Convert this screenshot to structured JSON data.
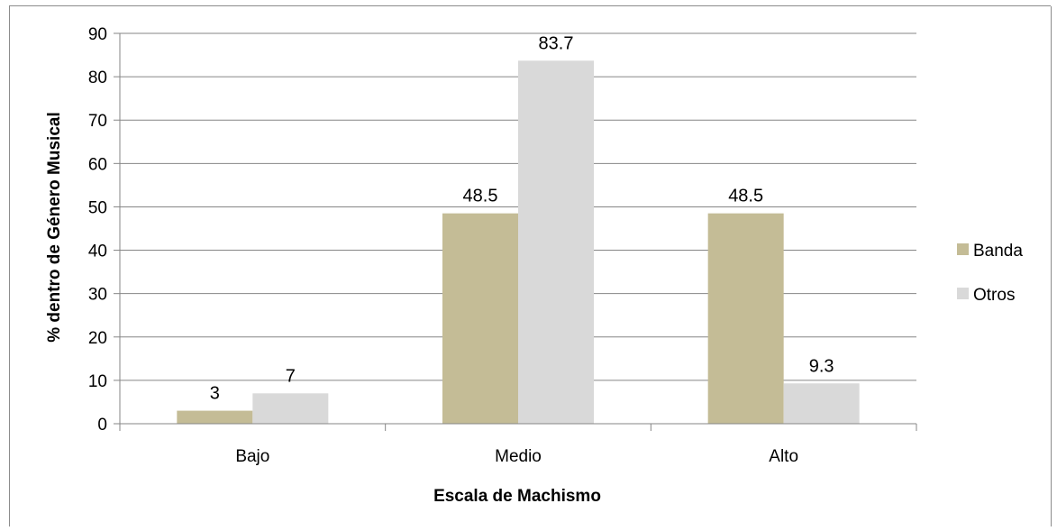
{
  "chart_data": {
    "type": "bar",
    "title": "",
    "xlabel": "Escala de Machismo",
    "ylabel": "% dentro de Género Musical",
    "categories": [
      "Bajo",
      "Medio",
      "Alto"
    ],
    "series": [
      {
        "name": "Banda",
        "values": [
          3,
          48.5,
          48.5
        ],
        "labels": [
          "3",
          "48.5",
          "48.5"
        ],
        "color": "#c4bc96"
      },
      {
        "name": "Otros",
        "values": [
          7,
          83.7,
          9.3
        ],
        "labels": [
          "7",
          "83.7",
          "9.3"
        ],
        "color": "#d9d9d9"
      }
    ],
    "ylim": [
      0,
      90
    ],
    "yticks": [
      "0",
      "10",
      "20",
      "30",
      "40",
      "50",
      "60",
      "70",
      "80",
      "90"
    ],
    "grid": true,
    "legend_position": "right"
  }
}
